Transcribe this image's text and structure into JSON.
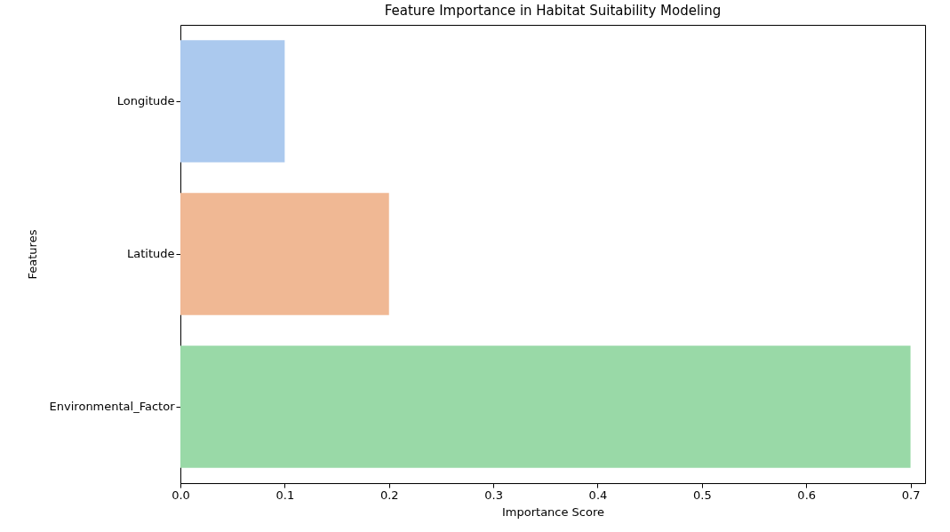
{
  "chart_data": {
    "type": "bar",
    "orientation": "horizontal",
    "title": "Feature Importance in Habitat Suitability Modeling",
    "xlabel": "Importance Score",
    "ylabel": "Features",
    "categories": [
      "Longitude",
      "Latitude",
      "Environmental_Factor"
    ],
    "values": [
      0.1,
      0.2,
      0.7
    ],
    "colors": [
      "#abc9ee",
      "#f0b894",
      "#99d9a7"
    ],
    "xlim": [
      0,
      0.714
    ],
    "xticks": [
      {
        "value": 0,
        "label": "0.0"
      },
      0.1,
      0.2,
      0.3,
      0.4,
      0.5,
      0.6,
      0.7
    ],
    "grid": false
  }
}
